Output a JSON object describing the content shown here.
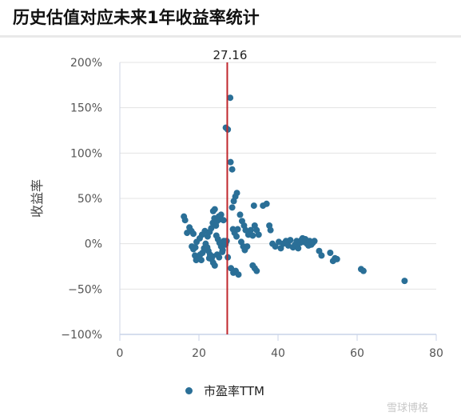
{
  "title": "历史估值对应未来1年收益率统计",
  "watermark": "雪球博格",
  "chart_data": {
    "type": "scatter",
    "ylabel": "收益率",
    "xlabel": "",
    "xlim": [
      0,
      80
    ],
    "ylim": [
      -100,
      200
    ],
    "x_ticks": [
      "0",
      "20",
      "40",
      "60",
      "80"
    ],
    "y_ticks": [
      "200%",
      "150%",
      "100%",
      "50%",
      "0%",
      "−50%",
      "−100%"
    ],
    "grid": "horizontal",
    "legend_position": "bottom",
    "marker_color": "#2a6f97",
    "reference_line": {
      "x": 27.16,
      "label": "27.16",
      "color": "#c0282d"
    },
    "series": [
      {
        "name": "市盈率TTM",
        "points": [
          [
            16.2,
            30
          ],
          [
            16.5,
            26
          ],
          [
            17.0,
            12
          ],
          [
            17.6,
            18
          ],
          [
            18.1,
            14
          ],
          [
            18.6,
            11
          ],
          [
            18.2,
            -3
          ],
          [
            18.6,
            -6
          ],
          [
            19.1,
            -4
          ],
          [
            19.4,
            2
          ],
          [
            19.0,
            -13
          ],
          [
            19.3,
            -18
          ],
          [
            19.8,
            -15
          ],
          [
            20.3,
            -12
          ],
          [
            20.6,
            -18
          ],
          [
            20.9,
            -10
          ],
          [
            21.3,
            -5
          ],
          [
            21.7,
            0
          ],
          [
            22.1,
            -4
          ],
          [
            22.4,
            -8
          ],
          [
            22.8,
            -12
          ],
          [
            23.2,
            -17
          ],
          [
            23.6,
            -21
          ],
          [
            24.0,
            -24
          ],
          [
            22.6,
            -16
          ],
          [
            23.4,
            -14
          ],
          [
            20.2,
            6
          ],
          [
            20.8,
            10
          ],
          [
            21.5,
            14
          ],
          [
            22.2,
            8
          ],
          [
            22.7,
            13
          ],
          [
            23.1,
            17
          ],
          [
            23.5,
            23
          ],
          [
            23.9,
            28
          ],
          [
            24.3,
            20
          ],
          [
            24.6,
            25
          ],
          [
            25.0,
            30
          ],
          [
            25.3,
            27
          ],
          [
            25.6,
            32
          ],
          [
            23.6,
            36
          ],
          [
            24.0,
            38
          ],
          [
            24.4,
            9
          ],
          [
            24.8,
            5
          ],
          [
            25.2,
            1
          ],
          [
            25.6,
            -3
          ],
          [
            26.0,
            -7
          ],
          [
            24.6,
            -12
          ],
          [
            25.1,
            -15
          ],
          [
            26.2,
            26
          ],
          [
            26.3,
            3
          ],
          [
            26.7,
            -1
          ],
          [
            27.0,
            3
          ],
          [
            27.3,
            -15
          ],
          [
            25.9,
            -9
          ],
          [
            26.8,
            128
          ],
          [
            27.3,
            126
          ],
          [
            27.9,
            161
          ],
          [
            28.0,
            90
          ],
          [
            28.4,
            82
          ],
          [
            28.4,
            40
          ],
          [
            28.8,
            47
          ],
          [
            29.2,
            52
          ],
          [
            29.6,
            56
          ],
          [
            28.6,
            16
          ],
          [
            29.0,
            12
          ],
          [
            29.5,
            8
          ],
          [
            28.1,
            -27
          ],
          [
            28.7,
            -32
          ],
          [
            29.3,
            -30
          ],
          [
            30.0,
            -34
          ],
          [
            29.8,
            16
          ],
          [
            30.4,
            32
          ],
          [
            30.9,
            25
          ],
          [
            31.4,
            20
          ],
          [
            31.8,
            15
          ],
          [
            30.7,
            2
          ],
          [
            31.2,
            -3
          ],
          [
            31.6,
            -7
          ],
          [
            32.2,
            -3
          ],
          [
            32.5,
            10
          ],
          [
            33.1,
            15
          ],
          [
            33.6,
            9
          ],
          [
            34.1,
            20
          ],
          [
            33.6,
            -24
          ],
          [
            34.1,
            -27
          ],
          [
            34.6,
            -30
          ],
          [
            33.9,
            42
          ],
          [
            34.6,
            15
          ],
          [
            35.1,
            10
          ],
          [
            36.2,
            42
          ],
          [
            37.1,
            44
          ],
          [
            37.8,
            20
          ],
          [
            38.1,
            15
          ],
          [
            38.6,
            0
          ],
          [
            39.3,
            -3
          ],
          [
            40.2,
            2
          ],
          [
            40.7,
            -5
          ],
          [
            41.3,
            0
          ],
          [
            42.0,
            3
          ],
          [
            42.6,
            -2
          ],
          [
            43.1,
            4
          ],
          [
            43.8,
            -4
          ],
          [
            44.3,
            -1
          ],
          [
            44.7,
            3
          ],
          [
            45.1,
            -5
          ],
          [
            45.6,
            1
          ],
          [
            45.9,
            4
          ],
          [
            46.2,
            6
          ],
          [
            46.5,
            2
          ],
          [
            46.9,
            5
          ],
          [
            47.3,
            0
          ],
          [
            47.7,
            -2
          ],
          [
            48.0,
            3
          ],
          [
            48.4,
            -1
          ],
          [
            48.8,
            1
          ],
          [
            49.2,
            3
          ],
          [
            50.4,
            -8
          ],
          [
            51.0,
            -13
          ],
          [
            53.2,
            -10
          ],
          [
            53.9,
            -19
          ],
          [
            54.4,
            -16
          ],
          [
            54.9,
            -17
          ],
          [
            61.0,
            -28
          ],
          [
            61.6,
            -30
          ],
          [
            72.0,
            -41
          ]
        ]
      }
    ]
  }
}
